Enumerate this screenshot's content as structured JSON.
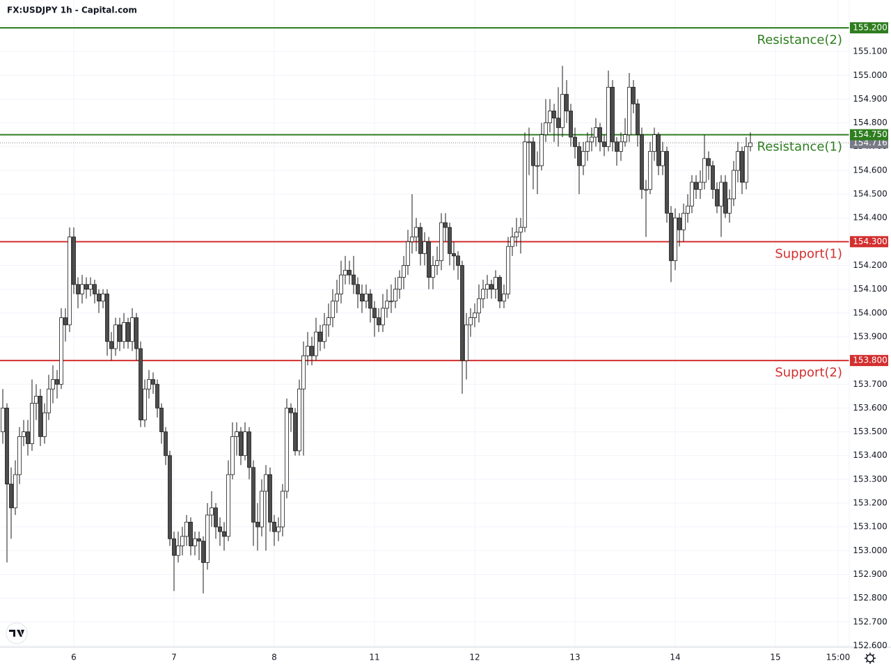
{
  "chart_data": {
    "type": "candlestick",
    "title": "FX:USDJPY 1h - Capital.com",
    "ylim": [
      152.594,
      155.317
    ],
    "xlim": [
      -0.667,
      202.667
    ],
    "grid": true,
    "up_color": "#ffffff",
    "down_color": "#4d4d4d",
    "wick_color": "#1a1a1a",
    "yticks": [
      {
        "value": 155.1,
        "label": "155.100"
      },
      {
        "value": 155.0,
        "label": "155.000"
      },
      {
        "value": 154.9,
        "label": "154.900"
      },
      {
        "value": 154.8,
        "label": "154.800"
      },
      {
        "value": 154.7,
        "label": "154.700"
      },
      {
        "value": 154.6,
        "label": "154.600"
      },
      {
        "value": 154.5,
        "label": "154.500"
      },
      {
        "value": 154.4,
        "label": "154.400"
      },
      {
        "value": 154.3,
        "label": "154.300"
      },
      {
        "value": 154.2,
        "label": "154.200"
      },
      {
        "value": 154.1,
        "label": "154.100"
      },
      {
        "value": 154.0,
        "label": "154.000"
      },
      {
        "value": 153.9,
        "label": "153.900"
      },
      {
        "value": 153.8,
        "label": "153.800"
      },
      {
        "value": 153.7,
        "label": "153.700"
      },
      {
        "value": 153.6,
        "label": "153.600"
      },
      {
        "value": 153.5,
        "label": "153.500"
      },
      {
        "value": 153.4,
        "label": "153.400"
      },
      {
        "value": 153.3,
        "label": "153.300"
      },
      {
        "value": 153.2,
        "label": "153.200"
      },
      {
        "value": 153.1,
        "label": "153.100"
      },
      {
        "value": 153.0,
        "label": "153.000"
      },
      {
        "value": 152.9,
        "label": "152.900"
      },
      {
        "value": 152.8,
        "label": "152.800"
      },
      {
        "value": 152.7,
        "label": "152.700"
      },
      {
        "value": 152.6,
        "label": "152.600"
      }
    ],
    "xticks": [
      {
        "value": 17,
        "label": "6"
      },
      {
        "value": 41,
        "label": "7"
      },
      {
        "value": 65,
        "label": "8"
      },
      {
        "value": 89,
        "label": "11"
      },
      {
        "value": 113,
        "label": "12"
      },
      {
        "value": 137,
        "label": "13"
      },
      {
        "value": 161,
        "label": "14"
      },
      {
        "value": 185,
        "label": "15"
      },
      {
        "value": 200,
        "label": "15:00"
      }
    ],
    "levels": [
      {
        "name": "Resistance(2)",
        "value": 155.2,
        "label": "155.200",
        "color": "#2e7d1f"
      },
      {
        "name": "Resistance(1)",
        "value": 154.75,
        "label": "154.750",
        "color": "#2e7d1f"
      },
      {
        "name": "Support(1)",
        "value": 154.3,
        "label": "154.300",
        "color": "#d32f2f"
      },
      {
        "name": "Support(2)",
        "value": 153.8,
        "label": "153.800",
        "color": "#d32f2f"
      }
    ],
    "last_price": {
      "value": 154.716,
      "label": "154.716",
      "color": "#787b86"
    },
    "ohlc": [
      [
        153.5,
        153.68,
        153.45,
        153.6
      ],
      [
        153.6,
        153.62,
        152.95,
        153.28
      ],
      [
        153.28,
        153.35,
        153.05,
        153.18
      ],
      [
        153.18,
        153.38,
        153.15,
        153.32
      ],
      [
        153.32,
        153.52,
        153.28,
        153.48
      ],
      [
        153.48,
        153.55,
        153.44,
        153.5
      ],
      [
        153.5,
        153.55,
        153.4,
        153.45
      ],
      [
        153.45,
        153.72,
        153.42,
        153.62
      ],
      [
        153.62,
        153.7,
        153.55,
        153.65
      ],
      [
        153.65,
        153.68,
        153.44,
        153.48
      ],
      [
        153.48,
        153.62,
        153.45,
        153.58
      ],
      [
        153.58,
        153.74,
        153.55,
        153.68
      ],
      [
        153.68,
        153.78,
        153.62,
        153.72
      ],
      [
        153.72,
        153.76,
        153.64,
        153.7
      ],
      [
        153.7,
        154.02,
        153.68,
        153.98
      ],
      [
        153.98,
        154.02,
        153.88,
        153.95
      ],
      [
        153.95,
        154.36,
        153.92,
        154.32
      ],
      [
        154.32,
        154.36,
        154.08,
        154.12
      ],
      [
        154.12,
        154.15,
        154.02,
        154.08
      ],
      [
        154.08,
        154.16,
        154.04,
        154.12
      ],
      [
        154.12,
        154.15,
        154.06,
        154.1
      ],
      [
        154.1,
        154.15,
        154.07,
        154.12
      ],
      [
        154.12,
        154.14,
        154.04,
        154.08
      ],
      [
        154.08,
        154.1,
        154.0,
        154.05
      ],
      [
        154.05,
        154.1,
        154.02,
        154.08
      ],
      [
        154.08,
        154.1,
        153.82,
        153.88
      ],
      [
        153.88,
        153.92,
        153.8,
        153.85
      ],
      [
        153.85,
        153.98,
        153.82,
        153.95
      ],
      [
        153.95,
        153.98,
        153.84,
        153.88
      ],
      [
        153.88,
        154.0,
        153.85,
        153.96
      ],
      [
        153.96,
        153.98,
        153.85,
        153.88
      ],
      [
        153.88,
        154.02,
        153.84,
        153.98
      ],
      [
        153.98,
        154.0,
        153.8,
        153.85
      ],
      [
        153.85,
        153.88,
        153.52,
        153.55
      ],
      [
        153.55,
        153.72,
        153.52,
        153.68
      ],
      [
        153.68,
        153.76,
        153.64,
        153.72
      ],
      [
        153.72,
        153.75,
        153.66,
        153.7
      ],
      [
        153.7,
        153.72,
        153.56,
        153.6
      ],
      [
        153.6,
        153.62,
        153.45,
        153.5
      ],
      [
        153.5,
        153.52,
        153.36,
        153.4
      ],
      [
        153.4,
        153.42,
        153.02,
        153.05
      ],
      [
        153.05,
        153.08,
        152.83,
        152.98
      ],
      [
        152.98,
        153.08,
        152.95,
        153.02
      ],
      [
        153.02,
        153.1,
        152.98,
        153.06
      ],
      [
        153.06,
        153.15,
        153.02,
        153.12
      ],
      [
        153.12,
        153.14,
        152.98,
        153.02
      ],
      [
        153.02,
        153.08,
        152.98,
        153.05
      ],
      [
        153.05,
        153.08,
        152.96,
        153.04
      ],
      [
        153.04,
        153.06,
        152.82,
        152.95
      ],
      [
        152.95,
        153.2,
        152.92,
        153.15
      ],
      [
        153.15,
        153.25,
        153.1,
        153.18
      ],
      [
        153.18,
        153.2,
        153.05,
        153.1
      ],
      [
        153.1,
        153.14,
        153.02,
        153.08
      ],
      [
        153.08,
        153.12,
        153.0,
        153.06
      ],
      [
        153.06,
        153.38,
        153.04,
        153.32
      ],
      [
        153.32,
        153.54,
        153.3,
        153.48
      ],
      [
        153.48,
        153.54,
        153.4,
        153.5
      ],
      [
        153.5,
        153.52,
        153.36,
        153.4
      ],
      [
        153.4,
        153.54,
        153.38,
        153.5
      ],
      [
        153.5,
        153.52,
        153.3,
        153.35
      ],
      [
        153.35,
        153.38,
        153.02,
        153.12
      ],
      [
        153.12,
        153.2,
        153.0,
        153.1
      ],
      [
        153.1,
        153.3,
        153.06,
        153.25
      ],
      [
        153.25,
        153.36,
        153.0,
        153.32
      ],
      [
        153.32,
        153.35,
        153.08,
        153.12
      ],
      [
        153.12,
        153.15,
        153.02,
        153.08
      ],
      [
        153.08,
        153.14,
        153.04,
        153.1
      ],
      [
        153.1,
        153.28,
        153.06,
        153.25
      ],
      [
        153.25,
        153.64,
        153.22,
        153.6
      ],
      [
        153.6,
        153.62,
        153.5,
        153.58
      ],
      [
        153.58,
        153.6,
        153.4,
        153.42
      ],
      [
        153.42,
        153.72,
        153.4,
        153.68
      ],
      [
        153.68,
        153.88,
        153.4,
        153.82
      ],
      [
        153.82,
        153.92,
        153.78,
        153.86
      ],
      [
        153.86,
        153.9,
        153.78,
        153.82
      ],
      [
        153.82,
        153.98,
        153.8,
        153.92
      ],
      [
        153.92,
        153.95,
        153.84,
        153.88
      ],
      [
        153.88,
        154.0,
        153.85,
        153.95
      ],
      [
        153.95,
        154.04,
        153.9,
        153.98
      ],
      [
        153.98,
        154.1,
        153.94,
        154.05
      ],
      [
        154.05,
        154.14,
        154.0,
        154.08
      ],
      [
        154.08,
        154.22,
        154.04,
        154.16
      ],
      [
        154.16,
        154.24,
        154.12,
        154.18
      ],
      [
        154.18,
        154.22,
        154.12,
        154.16
      ],
      [
        154.16,
        154.24,
        154.08,
        154.12
      ],
      [
        154.12,
        154.15,
        154.02,
        154.08
      ],
      [
        154.08,
        154.12,
        154.0,
        154.05
      ],
      [
        154.05,
        154.12,
        154.02,
        154.08
      ],
      [
        154.08,
        154.1,
        153.96,
        154.02
      ],
      [
        154.02,
        154.05,
        153.9,
        153.98
      ],
      [
        153.98,
        154.02,
        153.92,
        153.95
      ],
      [
        153.95,
        154.08,
        153.92,
        154.02
      ],
      [
        154.02,
        154.1,
        153.98,
        154.05
      ],
      [
        154.05,
        154.12,
        154.0,
        154.05
      ],
      [
        154.05,
        154.15,
        154.02,
        154.1
      ],
      [
        154.1,
        154.18,
        154.06,
        154.15
      ],
      [
        154.15,
        154.24,
        154.1,
        154.2
      ],
      [
        154.2,
        154.35,
        154.16,
        154.3
      ],
      [
        154.3,
        154.5,
        154.25,
        154.32
      ],
      [
        154.32,
        154.4,
        154.26,
        154.36
      ],
      [
        154.36,
        154.38,
        154.2,
        154.25
      ],
      [
        154.25,
        154.34,
        154.2,
        154.3
      ],
      [
        154.3,
        154.32,
        154.1,
        154.15
      ],
      [
        154.15,
        154.24,
        154.1,
        154.2
      ],
      [
        154.2,
        154.28,
        154.16,
        154.22
      ],
      [
        154.22,
        154.42,
        154.18,
        154.38
      ],
      [
        154.38,
        154.42,
        154.3,
        154.36
      ],
      [
        154.36,
        154.38,
        154.2,
        154.25
      ],
      [
        154.25,
        154.3,
        154.18,
        154.24
      ],
      [
        154.24,
        154.26,
        154.14,
        154.2
      ],
      [
        154.2,
        154.22,
        153.66,
        153.8
      ],
      [
        153.8,
        154.0,
        153.72,
        153.95
      ],
      [
        153.95,
        154.02,
        153.9,
        153.98
      ],
      [
        153.98,
        154.04,
        153.94,
        154.0
      ],
      [
        154.0,
        154.12,
        153.96,
        154.06
      ],
      [
        154.06,
        154.14,
        154.02,
        154.1
      ],
      [
        154.1,
        154.16,
        154.06,
        154.12
      ],
      [
        154.12,
        154.14,
        154.06,
        154.1
      ],
      [
        154.1,
        154.18,
        154.06,
        154.15
      ],
      [
        154.15,
        154.16,
        154.02,
        154.05
      ],
      [
        154.05,
        154.12,
        154.02,
        154.08
      ],
      [
        154.08,
        154.32,
        154.06,
        154.28
      ],
      [
        154.28,
        154.36,
        154.24,
        154.32
      ],
      [
        154.32,
        154.4,
        154.28,
        154.34
      ],
      [
        154.34,
        154.4,
        154.25,
        154.36
      ],
      [
        154.36,
        154.76,
        154.34,
        154.72
      ],
      [
        154.72,
        154.78,
        154.58,
        154.72
      ],
      [
        154.72,
        154.74,
        154.52,
        154.62
      ],
      [
        154.62,
        154.68,
        154.5,
        154.62
      ],
      [
        154.62,
        154.8,
        154.6,
        154.75
      ],
      [
        154.75,
        154.9,
        154.72,
        154.8
      ],
      [
        154.8,
        154.9,
        154.76,
        154.85
      ],
      [
        154.85,
        154.88,
        154.72,
        154.82
      ],
      [
        154.82,
        154.95,
        154.7,
        154.78
      ],
      [
        154.78,
        155.04,
        154.74,
        154.92
      ],
      [
        154.92,
        154.98,
        154.8,
        154.85
      ],
      [
        154.85,
        154.88,
        154.7,
        154.74
      ],
      [
        154.74,
        154.78,
        154.65,
        154.7
      ],
      [
        154.7,
        154.72,
        154.5,
        154.62
      ],
      [
        154.62,
        154.72,
        154.58,
        154.68
      ],
      [
        154.68,
        154.76,
        154.64,
        154.72
      ],
      [
        154.72,
        154.78,
        154.68,
        154.74
      ],
      [
        154.74,
        154.82,
        154.7,
        154.78
      ],
      [
        154.78,
        154.8,
        154.68,
        154.72
      ],
      [
        154.72,
        154.75,
        154.66,
        154.7
      ],
      [
        154.7,
        155.02,
        154.68,
        154.95
      ],
      [
        154.95,
        154.98,
        154.68,
        154.72
      ],
      [
        154.72,
        154.74,
        154.62,
        154.68
      ],
      [
        154.68,
        154.76,
        154.64,
        154.72
      ],
      [
        154.72,
        154.82,
        154.7,
        154.75
      ],
      [
        154.75,
        155.01,
        154.72,
        154.95
      ],
      [
        154.95,
        154.98,
        154.84,
        154.88
      ],
      [
        154.88,
        154.9,
        154.7,
        154.75
      ],
      [
        154.75,
        154.78,
        154.48,
        154.52
      ],
      [
        154.52,
        154.56,
        154.32,
        154.52
      ],
      [
        154.52,
        154.72,
        154.5,
        154.68
      ],
      [
        154.68,
        154.78,
        154.64,
        154.75
      ],
      [
        154.75,
        154.76,
        154.58,
        154.62
      ],
      [
        154.62,
        154.72,
        154.58,
        154.68
      ],
      [
        154.68,
        154.7,
        154.38,
        154.42
      ],
      [
        154.42,
        154.45,
        154.13,
        154.22
      ],
      [
        154.22,
        154.44,
        154.18,
        154.4
      ],
      [
        154.4,
        154.42,
        154.28,
        154.35
      ],
      [
        154.35,
        154.46,
        154.3,
        154.42
      ],
      [
        154.42,
        154.5,
        154.38,
        154.45
      ],
      [
        154.45,
        154.58,
        154.42,
        154.55
      ],
      [
        154.55,
        154.58,
        154.48,
        154.52
      ],
      [
        154.52,
        154.6,
        154.48,
        154.55
      ],
      [
        154.55,
        154.75,
        154.52,
        154.65
      ],
      [
        154.65,
        154.68,
        154.56,
        154.62
      ],
      [
        154.62,
        154.64,
        154.48,
        154.52
      ],
      [
        154.52,
        154.55,
        154.42,
        154.45
      ],
      [
        154.45,
        154.58,
        154.32,
        154.55
      ],
      [
        154.55,
        154.58,
        154.4,
        154.42
      ],
      [
        154.42,
        154.52,
        154.38,
        154.48
      ],
      [
        154.48,
        154.64,
        154.45,
        154.6
      ],
      [
        154.6,
        154.72,
        154.55,
        154.68
      ],
      [
        154.68,
        154.7,
        154.5,
        154.55
      ],
      [
        154.55,
        154.74,
        154.52,
        154.7
      ],
      [
        154.7,
        154.76,
        154.68,
        154.716
      ]
    ]
  }
}
